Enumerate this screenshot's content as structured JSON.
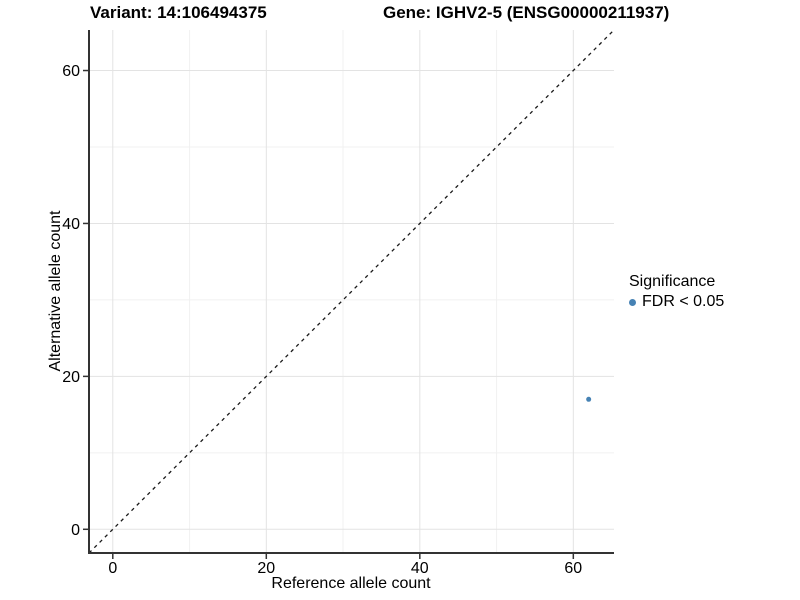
{
  "titles": {
    "variant": "Variant: 14:106494375",
    "gene": "Gene: IGHV2-5 (ENSG00000211937)"
  },
  "axes": {
    "x_label": "Reference allele count",
    "y_label": "Alternative allele count"
  },
  "legend": {
    "title": "Significance",
    "items": [
      {
        "label": "FDR < 0.05",
        "color": "#4682B4"
      }
    ]
  },
  "colors": {
    "point": "#4682B4",
    "grid_major": "#e3e3e3",
    "grid_minor": "#f1f1f1",
    "axis_line": "#333333",
    "reference_line": "#1a1a1a",
    "text": "#000000",
    "background": "#ffffff"
  },
  "chart_data": {
    "type": "scatter",
    "title": "Variant: 14:106494375 — Gene: IGHV2-5 (ENSG00000211937)",
    "xlabel": "Reference allele count",
    "ylabel": "Alternative allele count",
    "xlim": [
      -3.1,
      65.3
    ],
    "ylim": [
      -3.1,
      65.3
    ],
    "x_ticks": [
      0,
      20,
      40,
      60
    ],
    "y_ticks": [
      0,
      20,
      40,
      60
    ],
    "x_minor_ticks": [
      10,
      30,
      50
    ],
    "y_minor_ticks": [
      10,
      30,
      50
    ],
    "grid": true,
    "legend_position": "right",
    "reference_line": {
      "type": "identity y=x",
      "style": "dashed"
    },
    "series": [
      {
        "name": "FDR < 0.05",
        "color": "#4682B4",
        "point_radius": 2.5,
        "points": [
          {
            "x": 62,
            "y": 17
          }
        ]
      }
    ]
  }
}
